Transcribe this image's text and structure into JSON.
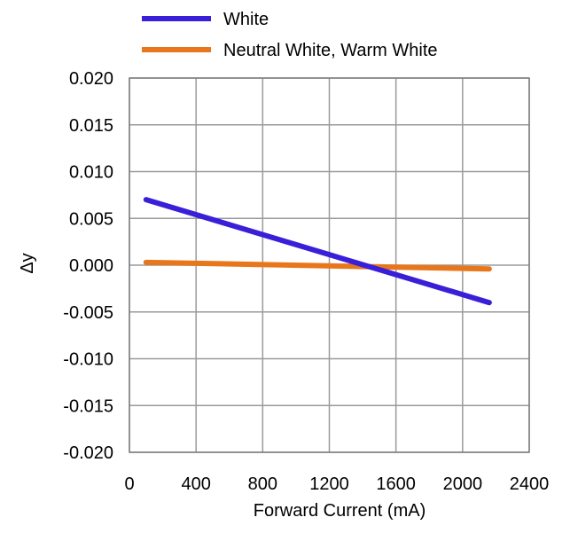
{
  "chart_data": {
    "type": "line",
    "title": "",
    "xlabel": "Forward Current (mA)",
    "ylabel": "Δy",
    "xlim": [
      0,
      2400
    ],
    "ylim": [
      -0.02,
      0.02
    ],
    "x_ticks": [
      "0",
      "400",
      "800",
      "1200",
      "1600",
      "2000",
      "2400"
    ],
    "x_tick_values": [
      0,
      400,
      800,
      1200,
      1600,
      2000,
      2400
    ],
    "y_ticks": [
      "0.020",
      "0.015",
      "0.010",
      "0.005",
      "0.000",
      "-0.005",
      "-0.010",
      "-0.015",
      "-0.020"
    ],
    "y_tick_values": [
      0.02,
      0.015,
      0.01,
      0.005,
      0.0,
      -0.005,
      -0.01,
      -0.015,
      -0.02
    ],
    "grid": true,
    "legend_position": "top",
    "series": [
      {
        "name": "White",
        "color": "#3a1fd9",
        "x": [
          100,
          2160
        ],
        "y": [
          0.007,
          -0.004
        ]
      },
      {
        "name": "Neutral White, Warm White",
        "color": "#e8761a",
        "x": [
          100,
          2160
        ],
        "y": [
          0.0003,
          -0.0004
        ]
      }
    ]
  }
}
